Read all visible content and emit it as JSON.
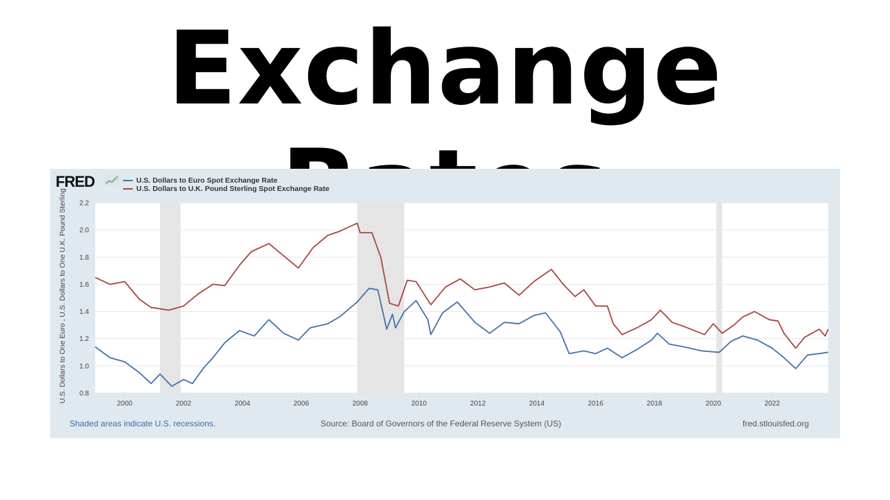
{
  "page": {
    "title": "Exchange Rates"
  },
  "fred": {
    "logo": "FRED",
    "footer_note": "Shaded areas indicate U.S. recessions.",
    "source": "Source: Board of Governors of the Federal Reserve System (US)",
    "url": "fred.stlouisfed.org"
  },
  "colors": {
    "euro": "#4572a7",
    "gbp": "#aa4643",
    "recession": "#e5e5e5",
    "panel_bg": "#e1e9f0",
    "footer_note": "#3a6ea5"
  },
  "chart_data": {
    "type": "line",
    "title": "Exchange Rates",
    "xlabel": "",
    "ylabel": "U.S. Dollars to One Euro , U.S. Dollars to One U.K. Pound Sterling",
    "xlim": [
      1999.0,
      2023.9
    ],
    "ylim": [
      0.8,
      2.2
    ],
    "grid": true,
    "legend_position": "top-left",
    "x_ticks": [
      "2000",
      "2002",
      "2004",
      "2006",
      "2008",
      "2010",
      "2012",
      "2014",
      "2016",
      "2018",
      "2020",
      "2022"
    ],
    "y_ticks": [
      "0.8",
      "1.0",
      "1.2",
      "1.4",
      "1.6",
      "1.8",
      "2.0",
      "2.2"
    ],
    "recessions": [
      [
        2001.2,
        2001.9
      ],
      [
        2007.9,
        2009.5
      ],
      [
        2020.1,
        2020.3
      ]
    ],
    "series": [
      {
        "name": "U.S. Dollars to Euro Spot Exchange Rate",
        "color": "#4572a7",
        "x": [
          1999.0,
          1999.5,
          2000.0,
          2000.5,
          2000.9,
          2001.2,
          2001.6,
          2002.0,
          2002.3,
          2002.7,
          2003.0,
          2003.4,
          2003.9,
          2004.4,
          2004.9,
          2005.4,
          2005.9,
          2006.3,
          2006.9,
          2007.3,
          2007.9,
          2008.3,
          2008.6,
          2008.9,
          2009.1,
          2009.2,
          2009.5,
          2009.9,
          2010.3,
          2010.4,
          2010.8,
          2011.3,
          2011.9,
          2012.4,
          2012.9,
          2013.4,
          2013.9,
          2014.3,
          2014.8,
          2015.1,
          2015.6,
          2016.0,
          2016.4,
          2016.9,
          2017.4,
          2017.9,
          2018.1,
          2018.5,
          2019.0,
          2019.6,
          2020.2,
          2020.6,
          2021.0,
          2021.5,
          2022.0,
          2022.4,
          2022.8,
          2023.2,
          2023.6,
          2023.9
        ],
        "values": [
          1.14,
          1.06,
          1.03,
          0.95,
          0.87,
          0.94,
          0.85,
          0.9,
          0.87,
          0.99,
          1.06,
          1.17,
          1.26,
          1.22,
          1.34,
          1.24,
          1.19,
          1.28,
          1.31,
          1.36,
          1.47,
          1.57,
          1.56,
          1.27,
          1.38,
          1.28,
          1.4,
          1.48,
          1.34,
          1.23,
          1.39,
          1.47,
          1.32,
          1.24,
          1.32,
          1.31,
          1.37,
          1.39,
          1.25,
          1.09,
          1.11,
          1.09,
          1.13,
          1.06,
          1.12,
          1.19,
          1.24,
          1.16,
          1.14,
          1.11,
          1.1,
          1.18,
          1.22,
          1.19,
          1.13,
          1.06,
          0.98,
          1.08,
          1.09,
          1.1
        ]
      },
      {
        "name": "U.S. Dollars to U.K. Pound Sterling Spot Exchange Rate",
        "color": "#aa4643",
        "x": [
          1999.0,
          1999.5,
          2000.0,
          2000.5,
          2000.9,
          2001.5,
          2002.0,
          2002.5,
          2003.0,
          2003.4,
          2003.9,
          2004.3,
          2004.9,
          2005.4,
          2005.9,
          2006.4,
          2006.9,
          2007.3,
          2007.9,
          2008.0,
          2008.4,
          2008.7,
          2009.0,
          2009.3,
          2009.6,
          2009.9,
          2010.4,
          2010.9,
          2011.4,
          2011.9,
          2012.4,
          2012.9,
          2013.4,
          2013.9,
          2014.5,
          2014.9,
          2015.3,
          2015.6,
          2016.0,
          2016.4,
          2016.6,
          2016.9,
          2017.4,
          2017.9,
          2018.2,
          2018.6,
          2019.0,
          2019.7,
          2020.0,
          2020.3,
          2020.7,
          2021.0,
          2021.4,
          2021.9,
          2022.2,
          2022.4,
          2022.8,
          2023.1,
          2023.6,
          2023.8,
          2023.9
        ],
        "values": [
          1.65,
          1.6,
          1.62,
          1.49,
          1.43,
          1.41,
          1.44,
          1.53,
          1.6,
          1.59,
          1.74,
          1.84,
          1.9,
          1.81,
          1.72,
          1.87,
          1.96,
          1.99,
          2.05,
          1.98,
          1.98,
          1.8,
          1.46,
          1.44,
          1.63,
          1.62,
          1.45,
          1.58,
          1.64,
          1.56,
          1.58,
          1.61,
          1.52,
          1.62,
          1.71,
          1.6,
          1.51,
          1.56,
          1.44,
          1.44,
          1.31,
          1.23,
          1.28,
          1.34,
          1.41,
          1.32,
          1.29,
          1.23,
          1.31,
          1.24,
          1.3,
          1.36,
          1.4,
          1.34,
          1.33,
          1.24,
          1.13,
          1.21,
          1.27,
          1.22,
          1.27
        ]
      }
    ]
  }
}
